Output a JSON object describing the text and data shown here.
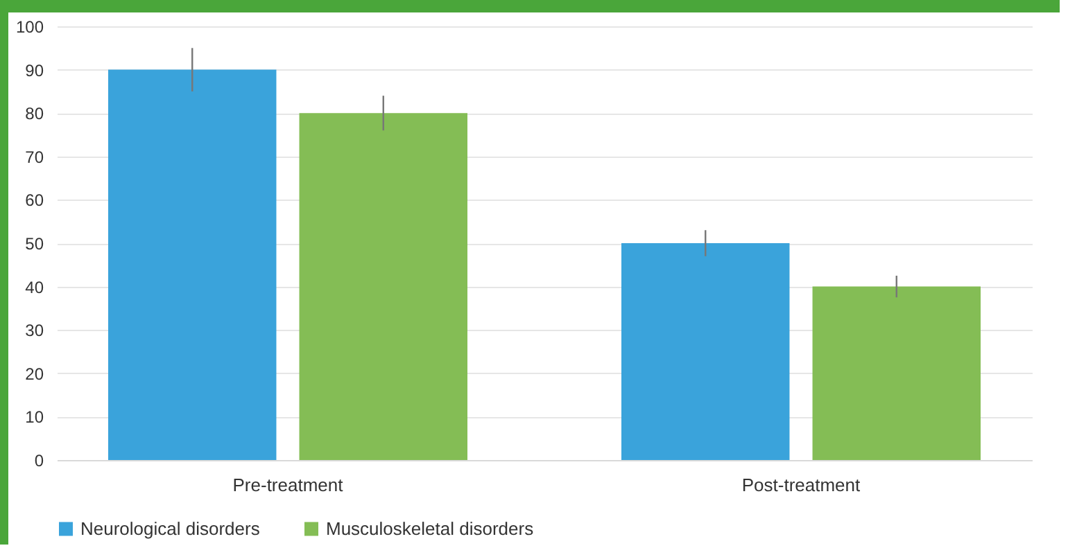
{
  "chart_data": {
    "type": "bar",
    "categories": [
      "Pre-treatment",
      "Post-treatment"
    ],
    "series": [
      {
        "name": "Neurological disorders",
        "color": "#3aa3db",
        "values": [
          90,
          50
        ],
        "errors": [
          5,
          3
        ]
      },
      {
        "name": "Musculoskeletal disorders",
        "color": "#84bd55",
        "values": [
          80,
          40
        ],
        "errors": [
          4,
          2.5
        ]
      }
    ],
    "ylim": [
      0,
      100
    ],
    "yticks": [
      0,
      10,
      20,
      30,
      40,
      50,
      60,
      70,
      80,
      90,
      100
    ],
    "grid": "y",
    "legend": "bottom"
  }
}
